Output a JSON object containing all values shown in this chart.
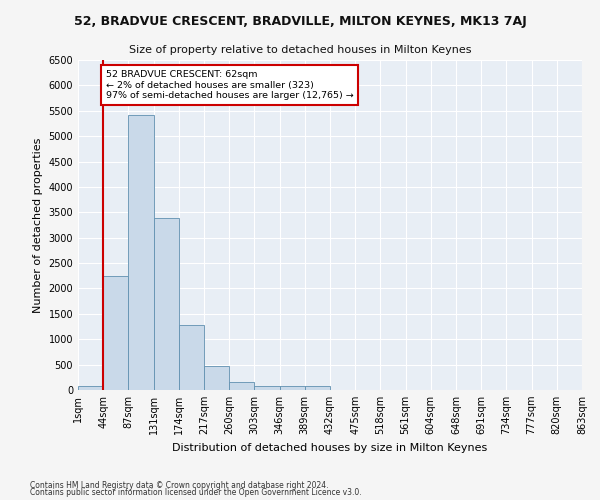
{
  "title": "52, BRADVUE CRESCENT, BRADVILLE, MILTON KEYNES, MK13 7AJ",
  "subtitle": "Size of property relative to detached houses in Milton Keynes",
  "xlabel": "Distribution of detached houses by size in Milton Keynes",
  "ylabel": "Number of detached properties",
  "footnote1": "Contains HM Land Registry data © Crown copyright and database right 2024.",
  "footnote2": "Contains public sector information licensed under the Open Government Licence v3.0.",
  "bin_labels": [
    "1sqm",
    "44sqm",
    "87sqm",
    "131sqm",
    "174sqm",
    "217sqm",
    "260sqm",
    "303sqm",
    "346sqm",
    "389sqm",
    "432sqm",
    "475sqm",
    "518sqm",
    "561sqm",
    "604sqm",
    "648sqm",
    "691sqm",
    "734sqm",
    "777sqm",
    "820sqm",
    "863sqm"
  ],
  "bar_values": [
    75,
    2250,
    5420,
    3380,
    1280,
    480,
    160,
    75,
    75,
    75,
    0,
    0,
    0,
    0,
    0,
    0,
    0,
    0,
    0,
    0
  ],
  "bar_color": "#c9d9e9",
  "bar_edge_color": "#6090b0",
  "annotation_text": "52 BRADVUE CRESCENT: 62sqm\n← 2% of detached houses are smaller (323)\n97% of semi-detached houses are larger (12,765) →",
  "annotation_box_color": "#ffffff",
  "annotation_box_edge": "#cc0000",
  "vline_color": "#cc0000",
  "bg_color": "#e8eef5",
  "grid_color": "#ffffff",
  "fig_bg_color": "#f5f5f5",
  "ylim": [
    0,
    6500
  ],
  "yticks": [
    0,
    500,
    1000,
    1500,
    2000,
    2500,
    3000,
    3500,
    4000,
    4500,
    5000,
    5500,
    6000,
    6500
  ],
  "title_fontsize": 9.0,
  "subtitle_fontsize": 8.0,
  "ylabel_fontsize": 8.0,
  "xlabel_fontsize": 8.0,
  "tick_fontsize": 7.0,
  "footnote_fontsize": 5.5
}
